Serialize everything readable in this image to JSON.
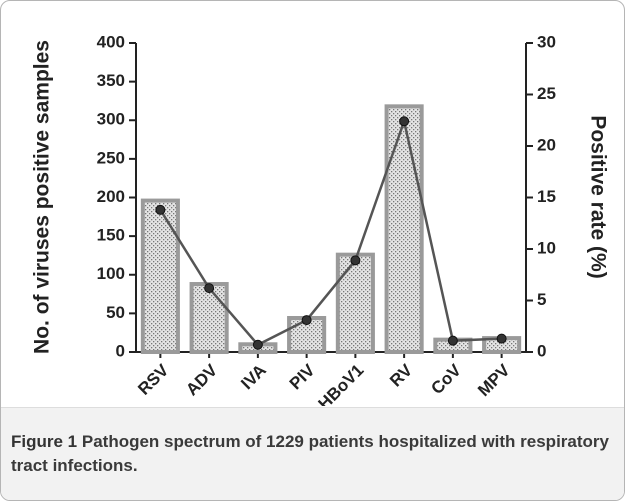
{
  "chart_data": {
    "type": "bar",
    "categories": [
      "RSV",
      "ADV",
      "IVA",
      "PIV",
      "HBoV1",
      "RV",
      "CoV",
      "MPV"
    ],
    "series": [
      {
        "name": "No. of viruses positive samples",
        "type": "bar",
        "axis": "y",
        "color": "#9a9a9a",
        "values": [
          196,
          88,
          10,
          44,
          126,
          318,
          16,
          18
        ]
      },
      {
        "name": "Positive rate (%)",
        "type": "line",
        "axis": "y2",
        "color": "#555555",
        "values": [
          13.8,
          6.2,
          0.7,
          3.1,
          8.9,
          22.4,
          1.1,
          1.3
        ]
      }
    ],
    "ylabel": "No. of viruses positive samples",
    "y2label": "Positive rate (%)",
    "ylim": [
      0,
      400
    ],
    "yticks": [
      0,
      50,
      100,
      150,
      200,
      250,
      300,
      350,
      400
    ],
    "y2lim": [
      0,
      30
    ],
    "y2ticks": [
      0,
      5,
      10,
      15,
      20,
      25,
      30
    ],
    "grid": false
  },
  "caption": {
    "label": "Figure 1",
    "text": "Pathogen spectrum of 1229 patients hospitalized with respiratory tract infections."
  }
}
